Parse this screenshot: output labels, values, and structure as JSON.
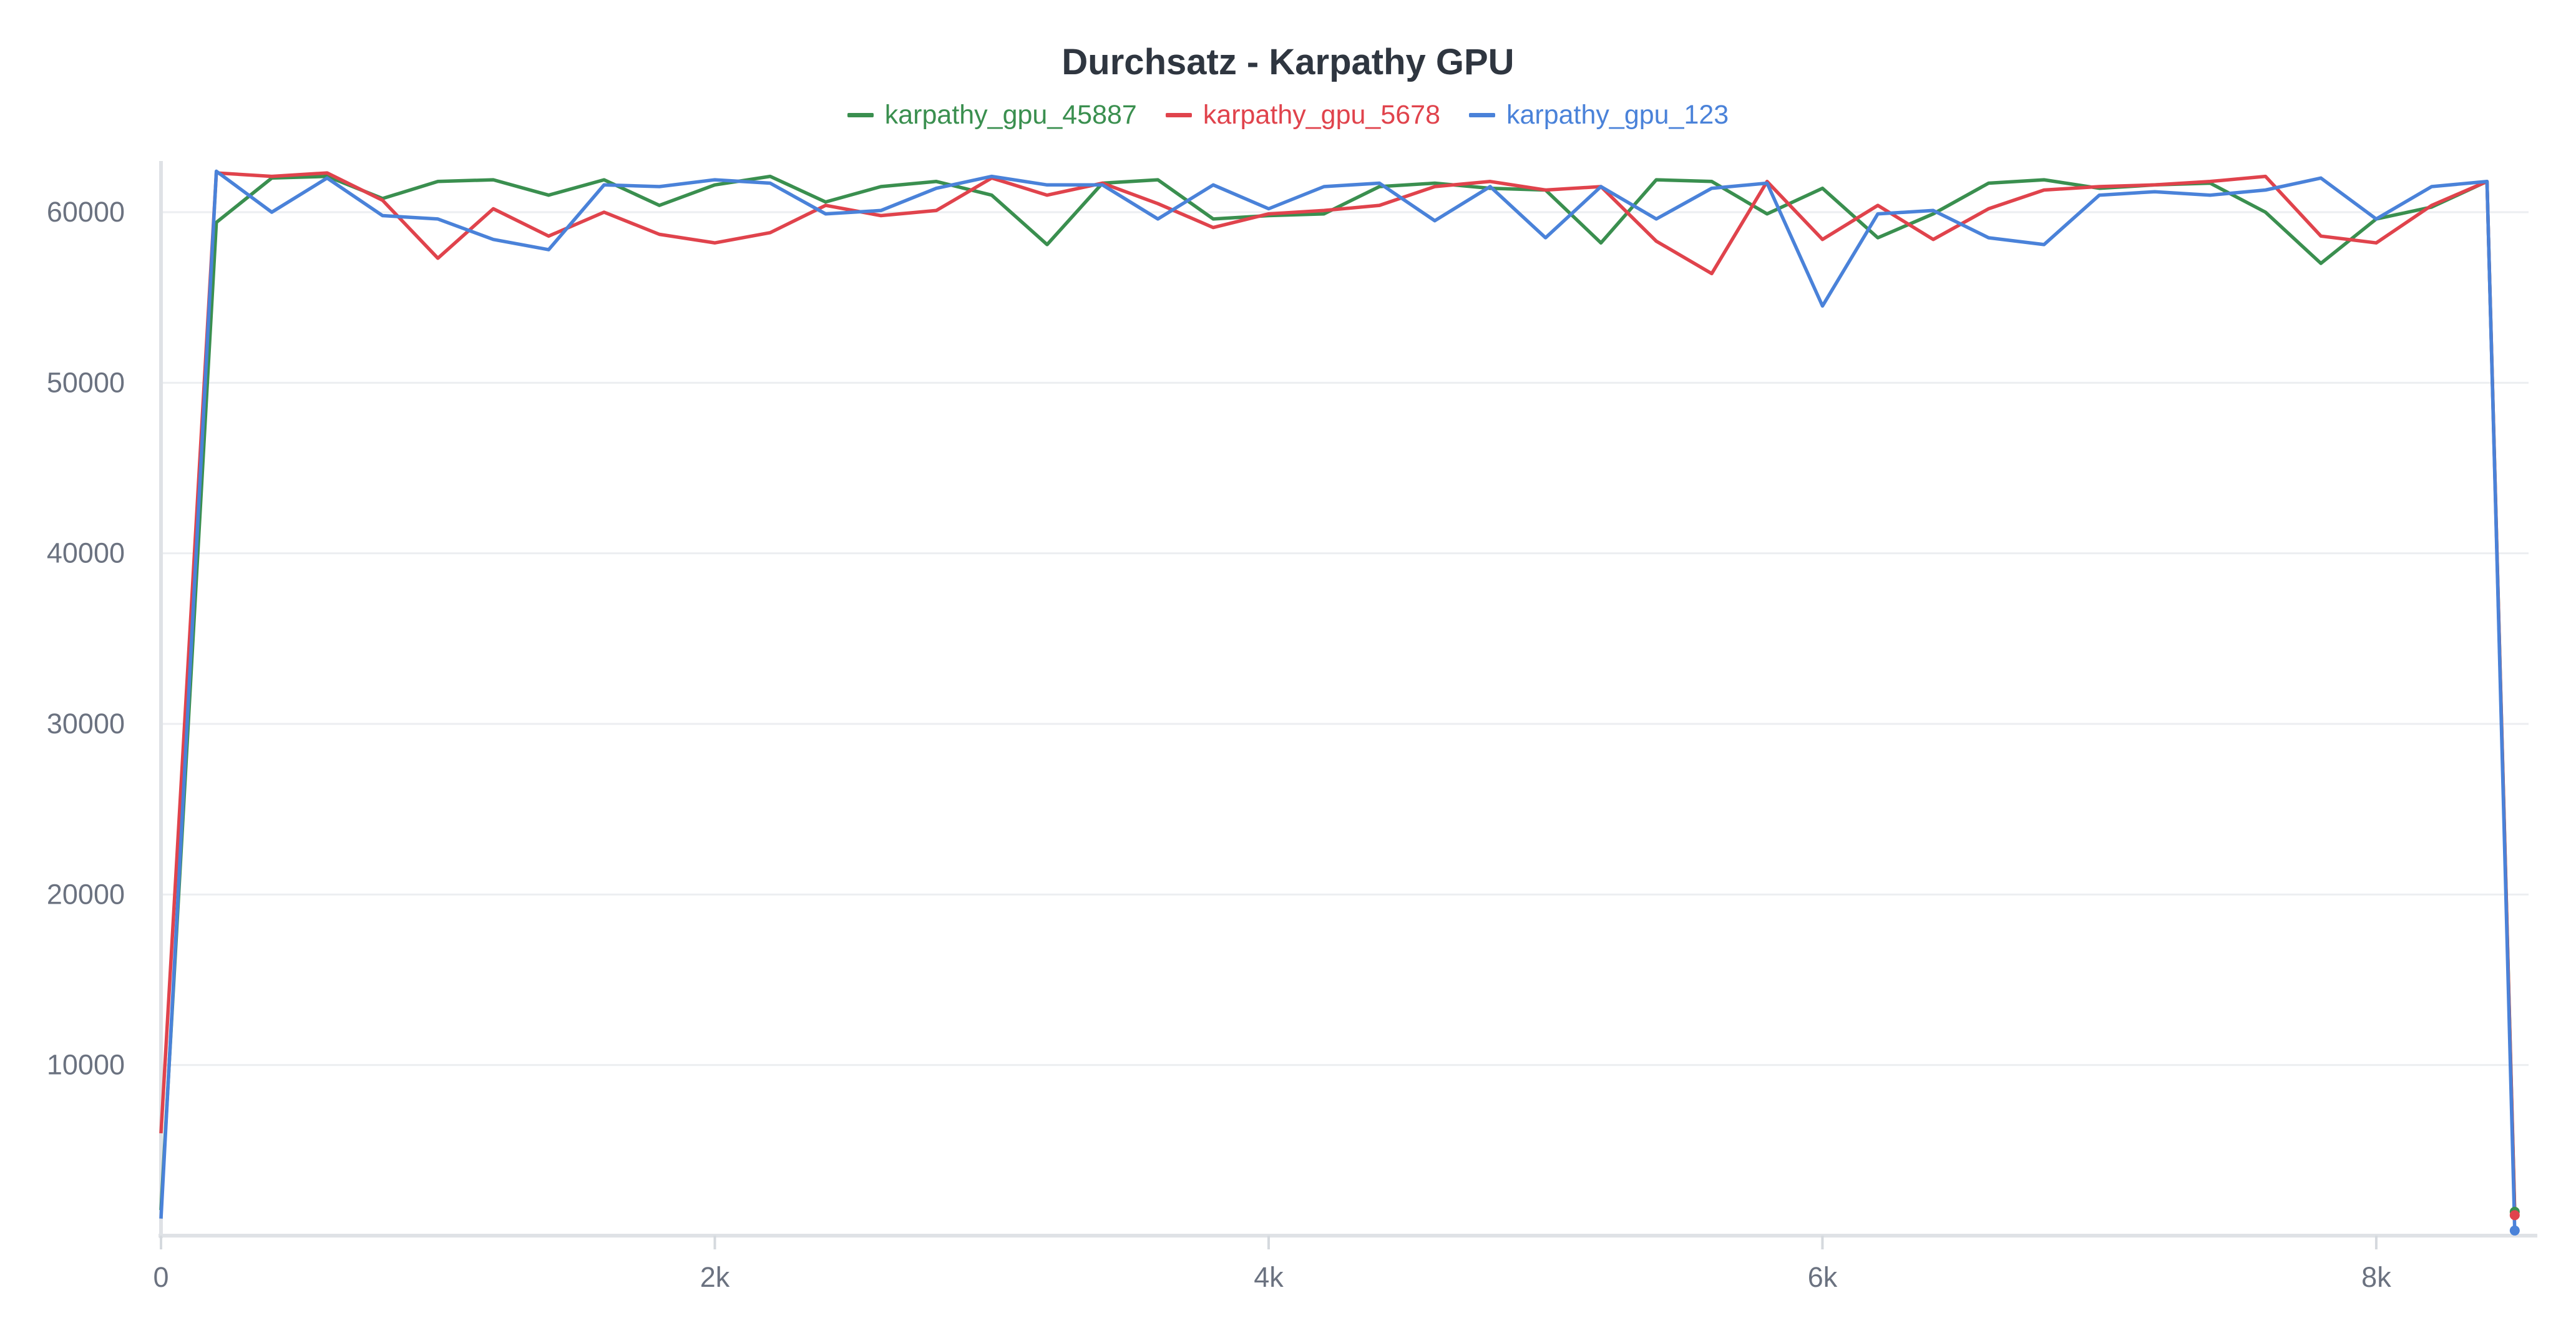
{
  "chart_data": {
    "type": "line",
    "title": "Durchsatz - Karpathy GPU",
    "xlabel": "",
    "ylabel": "",
    "xlim": [
      0,
      8550
    ],
    "ylim": [
      0,
      63000
    ],
    "grid": true,
    "legend_position": "top-center",
    "x_ticks": [
      {
        "value": 0,
        "label": "0"
      },
      {
        "value": 2000,
        "label": "2k"
      },
      {
        "value": 4000,
        "label": "4k"
      },
      {
        "value": 6000,
        "label": "6k"
      },
      {
        "value": 8000,
        "label": "8k"
      }
    ],
    "y_ticks": [
      {
        "value": 10000,
        "label": "10000"
      },
      {
        "value": 20000,
        "label": "20000"
      },
      {
        "value": 30000,
        "label": "30000"
      },
      {
        "value": 40000,
        "label": "40000"
      },
      {
        "value": 50000,
        "label": "50000"
      },
      {
        "value": 60000,
        "label": "60000"
      }
    ],
    "x": [
      0,
      200,
      400,
      600,
      800,
      1000,
      1200,
      1400,
      1600,
      1800,
      2000,
      2200,
      2400,
      2600,
      2800,
      3000,
      3200,
      3400,
      3600,
      3800,
      4000,
      4200,
      4400,
      4600,
      4800,
      5000,
      5200,
      5400,
      5600,
      5800,
      6000,
      6200,
      6400,
      6600,
      6800,
      7000,
      7200,
      7400,
      7600,
      7800,
      8000,
      8200,
      8400,
      8500
    ],
    "series": [
      {
        "name": "karpathy_gpu_45887",
        "color": "#3a8f4f",
        "values": [
          1500,
          59400,
          62000,
          62100,
          60800,
          61800,
          61900,
          61000,
          61900,
          60400,
          61600,
          62100,
          60600,
          61500,
          61800,
          61000,
          58100,
          61700,
          61900,
          59600,
          59800,
          59900,
          61500,
          61700,
          61400,
          61300,
          58200,
          61900,
          61800,
          59900,
          61400,
          58500,
          59900,
          61700,
          61900,
          61400,
          61600,
          61700,
          60000,
          57000,
          59600,
          60300,
          61800,
          1400
        ]
      },
      {
        "name": "karpathy_gpu_5678",
        "color": "#e0434c",
        "values": [
          6000,
          62300,
          62100,
          62300,
          60700,
          57300,
          60200,
          58600,
          60000,
          58700,
          58200,
          58800,
          60400,
          59800,
          60100,
          62000,
          61000,
          61700,
          60500,
          59100,
          59900,
          60100,
          60400,
          61500,
          61800,
          61300,
          61500,
          58300,
          56400,
          61800,
          58400,
          60400,
          58400,
          60200,
          61300,
          61500,
          61600,
          61800,
          62100,
          58600,
          58200,
          60400,
          61800,
          1200
        ]
      },
      {
        "name": "karpathy_gpu_123",
        "color": "#4a82d9",
        "values": [
          1000,
          62400,
          60000,
          62000,
          59800,
          59600,
          58400,
          57800,
          61600,
          61500,
          61900,
          61700,
          59900,
          60100,
          61400,
          62100,
          61600,
          61600,
          59600,
          61600,
          60200,
          61500,
          61700,
          59500,
          61500,
          58500,
          61500,
          59600,
          61400,
          61700,
          54500,
          59900,
          60100,
          58500,
          58100,
          61000,
          61200,
          61000,
          61300,
          62000,
          59600,
          61500,
          61800,
          300
        ]
      }
    ]
  }
}
